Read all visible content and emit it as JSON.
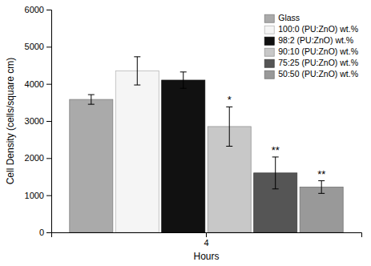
{
  "chart_data": {
    "type": "bar",
    "xlabel": "Hours",
    "ylabel": "Cell Density (cells/square cm)",
    "categories": [
      "4"
    ],
    "series": [
      {
        "name": "Glass",
        "color": "#aaaaaa",
        "values": [
          3580
        ],
        "errors": [
          130
        ]
      },
      {
        "name": "100:0 (PU:ZnO) wt.%",
        "color": "#f5f5f5",
        "values": [
          4350
        ],
        "errors": [
          380
        ]
      },
      {
        "name": "98:2 (PU:ZnO) wt.%",
        "color": "#111111",
        "values": [
          4100
        ],
        "errors": [
          220
        ]
      },
      {
        "name": "90:10 (PU:ZnO) wt.%",
        "color": "#c8c8c8",
        "values": [
          2850
        ],
        "errors": [
          530
        ],
        "annotations": [
          "*"
        ]
      },
      {
        "name": "75:25 (PU:ZnO) wt.%",
        "color": "#555555",
        "values": [
          1600
        ],
        "errors": [
          430
        ],
        "annotations": [
          "**"
        ]
      },
      {
        "name": "50:50 (PU:ZnO) wt.%",
        "color": "#999999",
        "values": [
          1220
        ],
        "errors": [
          170
        ],
        "annotations": [
          "**"
        ]
      }
    ],
    "ylim": [
      0,
      6000
    ],
    "yticks": [
      0,
      1000,
      2000,
      3000,
      4000,
      5000,
      6000
    ],
    "legend": "upper right"
  }
}
